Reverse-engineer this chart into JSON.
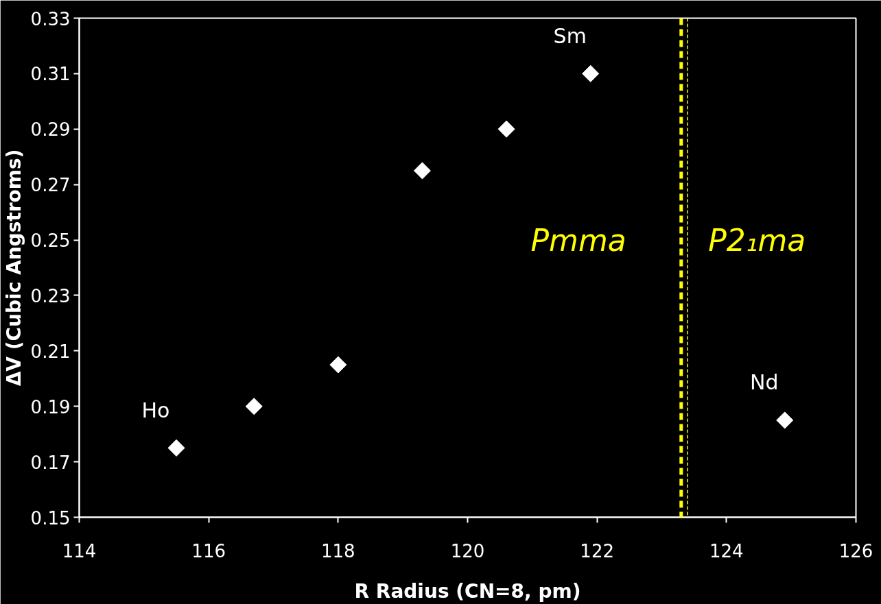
{
  "chart_data": {
    "type": "scatter",
    "xlabel": "R Radius (CN=8, pm)",
    "ylabel": "ΔV (Cubic Angstroms)",
    "x": [
      115.5,
      116.7,
      118.0,
      119.3,
      120.6,
      121.9,
      124.9
    ],
    "series": [
      {
        "color": "#ffffff",
        "values": [
          0.175,
          0.19,
          0.205,
          0.275,
          0.29,
          0.31,
          0.185
        ]
      }
    ],
    "marker": "diamond",
    "xlim": [
      114,
      126
    ],
    "xticks": [
      114,
      116,
      118,
      120,
      122,
      124,
      126
    ],
    "ylim": [
      0.15,
      0.33
    ],
    "yticks": [
      {
        "value": 0.15,
        "label": "0.15"
      },
      {
        "value": 0.17,
        "label": "0.17"
      },
      {
        "value": 0.19,
        "label": "0.19"
      },
      {
        "value": 0.21,
        "label": "0.21"
      },
      {
        "value": 0.23,
        "label": "0.23"
      },
      {
        "value": 0.25,
        "label": "0.25"
      },
      {
        "value": 0.27,
        "label": "0.27"
      },
      {
        "value": 0.29,
        "label": "0.29"
      },
      {
        "value": 0.31,
        "label": "0.31"
      },
      {
        "value": 0.33,
        "label": "0.33"
      }
    ],
    "grid": false,
    "ref_lines": [
      {
        "axis": "x",
        "value": 123.3,
        "label": "Pmma",
        "color": "#ffff00",
        "line_style": "dashed"
      },
      {
        "axis": "x",
        "value": 123.4,
        "label": "P2₁ma",
        "color": "#ffff00",
        "line_style": "dashed"
      }
    ],
    "annotations": [
      {
        "text": "Ho",
        "x": 115.5,
        "y": 0.175
      },
      {
        "text": "Sm",
        "x": 121.9,
        "y": 0.31
      },
      {
        "text": "Nd",
        "x": 124.9,
        "y": 0.185
      }
    ]
  }
}
